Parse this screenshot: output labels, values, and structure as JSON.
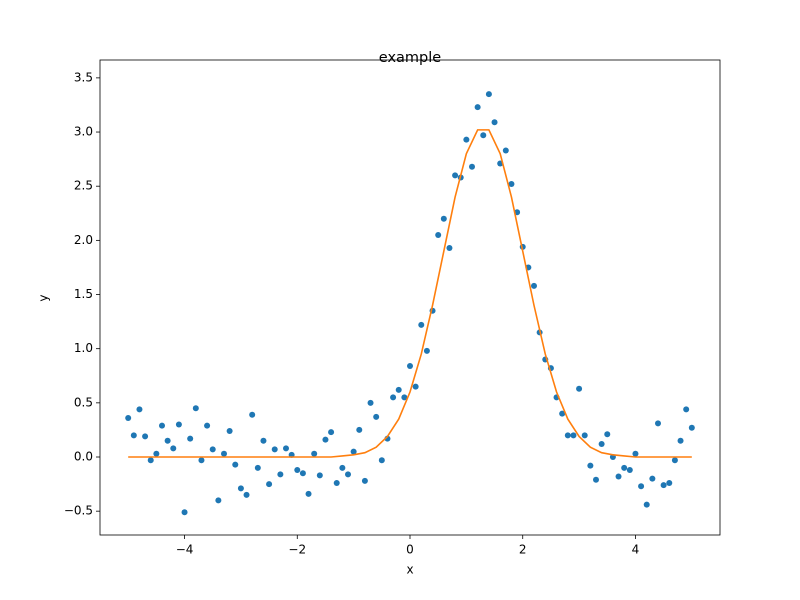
{
  "chart_data": {
    "type": "scatter",
    "title": "example",
    "x_label": "x",
    "y_label": "y",
    "xlim": [
      -5.5,
      5.5
    ],
    "ylim": [
      -0.72,
      3.665
    ],
    "xticks": [
      {
        "value": -4,
        "label": "−4"
      },
      {
        "value": -2,
        "label": "−2"
      },
      0,
      2,
      4
    ],
    "yticks": [
      {
        "value": -0.5,
        "label": "−0.5"
      },
      {
        "value": 0,
        "label": "0.0"
      },
      0.5,
      {
        "value": 1,
        "label": "1.0"
      },
      1.5,
      {
        "value": 2,
        "label": "2.0"
      },
      2.5,
      {
        "value": 3,
        "label": "3.0"
      },
      3.5
    ],
    "grid": false,
    "series": [
      {
        "type": "scatter",
        "color": "#1f77b4",
        "x": [
          -5.0,
          -4.9,
          -4.8,
          -4.7,
          -4.6,
          -4.5,
          -4.4,
          -4.3,
          -4.2,
          -4.1,
          -4.0,
          -3.9,
          -3.8,
          -3.7,
          -3.6,
          -3.5,
          -3.4,
          -3.3,
          -3.2,
          -3.1,
          -3.0,
          -2.9,
          -2.8,
          -2.7,
          -2.6,
          -2.5,
          -2.4,
          -2.3,
          -2.2,
          -2.1,
          -2.0,
          -1.9,
          -1.8,
          -1.7,
          -1.6,
          -1.5,
          -1.4,
          -1.3,
          -1.2,
          -1.1,
          -1.0,
          -0.9,
          -0.8,
          -0.7,
          -0.6,
          -0.5,
          -0.4,
          -0.3,
          -0.2,
          -0.1,
          0.0,
          0.1,
          0.2,
          0.3,
          0.4,
          0.5,
          0.6,
          0.7,
          0.8,
          0.9,
          1.0,
          1.1,
          1.2,
          1.3,
          1.4,
          1.5,
          1.6,
          1.7,
          1.8,
          1.9,
          2.0,
          2.1,
          2.2,
          2.3,
          2.4,
          2.5,
          2.6,
          2.7,
          2.8,
          2.9,
          3.0,
          3.1,
          3.2,
          3.3,
          3.4,
          3.5,
          3.6,
          3.7,
          3.8,
          3.9,
          4.0,
          4.1,
          4.2,
          4.3,
          4.4,
          4.5,
          4.6,
          4.7,
          4.8,
          4.9,
          5.0
        ],
        "values": [
          0.36,
          0.2,
          0.44,
          0.19,
          -0.03,
          0.03,
          0.29,
          0.15,
          0.08,
          0.3,
          -0.51,
          0.17,
          0.45,
          -0.03,
          0.29,
          0.07,
          -0.4,
          0.03,
          0.24,
          -0.07,
          -0.29,
          -0.35,
          0.39,
          -0.1,
          0.15,
          -0.25,
          0.07,
          -0.16,
          0.08,
          0.02,
          -0.12,
          -0.15,
          -0.34,
          0.03,
          -0.17,
          0.16,
          0.23,
          -0.24,
          -0.1,
          -0.16,
          0.05,
          0.25,
          -0.22,
          0.5,
          0.37,
          -0.03,
          0.17,
          0.55,
          0.62,
          0.55,
          0.84,
          0.65,
          1.22,
          0.98,
          1.35,
          2.05,
          2.2,
          1.93,
          2.6,
          2.58,
          2.93,
          2.68,
          3.23,
          2.97,
          3.35,
          3.09,
          2.71,
          2.83,
          2.52,
          2.26,
          1.94,
          1.75,
          1.58,
          1.15,
          0.9,
          0.82,
          0.55,
          0.4,
          0.2,
          0.2,
          0.63,
          0.2,
          -0.08,
          -0.21,
          0.12,
          0.21,
          0.0,
          -0.18,
          -0.1,
          -0.12,
          0.03,
          -0.27,
          -0.44,
          -0.2,
          0.31,
          -0.26,
          -0.24,
          -0.03,
          0.15,
          0.44,
          0.27
        ]
      },
      {
        "type": "line",
        "color": "#ff7f0e",
        "x": [
          -5.0,
          -4.8,
          -4.6,
          -4.4,
          -4.2,
          -4.0,
          -3.8,
          -3.6,
          -3.4,
          -3.2,
          -3.0,
          -2.8,
          -2.6,
          -2.4,
          -2.2,
          -2.0,
          -1.8,
          -1.6,
          -1.4,
          -1.2,
          -1.0,
          -0.8,
          -0.6,
          -0.4,
          -0.2,
          0.0,
          0.2,
          0.4,
          0.6,
          0.8,
          1.0,
          1.2,
          1.4,
          1.6,
          1.8,
          2.0,
          2.2,
          2.4,
          2.6,
          2.8,
          3.0,
          3.2,
          3.4,
          3.6,
          3.8,
          4.0,
          4.2,
          4.4,
          4.6,
          4.8,
          5.0
        ],
        "values": [
          0,
          0,
          0,
          0,
          0,
          0,
          0,
          0,
          0,
          0,
          0,
          0,
          0,
          0,
          0,
          0,
          0,
          0,
          0,
          0.01,
          0.02,
          0.04,
          0.09,
          0.19,
          0.35,
          0.6,
          0.95,
          1.4,
          1.9,
          2.4,
          2.8,
          3.02,
          3.02,
          2.8,
          2.4,
          1.9,
          1.4,
          0.95,
          0.6,
          0.35,
          0.19,
          0.09,
          0.04,
          0.02,
          0.01,
          0,
          0,
          0,
          0,
          0,
          0
        ]
      }
    ]
  }
}
